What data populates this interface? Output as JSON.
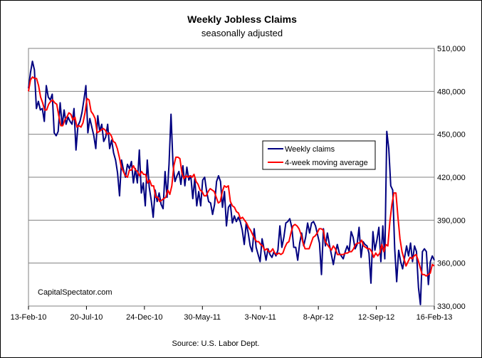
{
  "chart_data": {
    "type": "line",
    "title": "Weekly Jobless Claims",
    "subtitle": "seasonally adjusted",
    "source": "Source: U.S. Labor Dept.",
    "watermark": "CapitalSpectator.com",
    "ylim": [
      330000,
      510000
    ],
    "y_ticks": [
      330000,
      360000,
      390000,
      420000,
      450000,
      480000,
      510000
    ],
    "y_tick_labels": [
      "330,000",
      "360,000",
      "390,000",
      "420,000",
      "450,000",
      "480,000",
      "510,000"
    ],
    "x_tick_labels": [
      "13-Feb-10",
      "20-Jul-10",
      "24-Dec-10",
      "30-May-11",
      "3-Nov-11",
      "8-Apr-12",
      "12-Sep-12",
      "16-Feb-13"
    ],
    "grid": "horizontal",
    "legend_position": "center-right",
    "x_start": "13-Feb-10",
    "x_end": "16-Feb-13",
    "series": [
      {
        "name": "Weekly claims",
        "color": "#000080",
        "values": [
          482000,
          493000,
          501000,
          495000,
          468000,
          473000,
          467000,
          468000,
          459000,
          484000,
          476000,
          474000,
          478000,
          451000,
          449000,
          452000,
          472000,
          456000,
          467000,
          457000,
          462000,
          459000,
          457000,
          468000,
          439000,
          456000,
          459000,
          465000,
          474000,
          484000,
          451000,
          461000,
          455000,
          449000,
          440000,
          463000,
          452000,
          457000,
          445000,
          448000,
          457000,
          440000,
          446000,
          437000,
          432000,
          423000,
          407000,
          432000,
          425000,
          420000,
          429000,
          426000,
          431000,
          416000,
          426000,
          416000,
          439000,
          409000,
          416000,
          400000,
          432000,
          413000,
          404000,
          392000,
          411000,
          403000,
          409000,
          401000,
          398000,
          424000,
          406000,
          429000,
          464000,
          429000,
          417000,
          421000,
          424000,
          415000,
          428000,
          414000,
          427000,
          418000,
          421000,
          405000,
          419000,
          400000,
          410000,
          400000,
          418000,
          420000,
          410000,
          403000,
          402000,
          394000,
          401000,
          417000,
          421000,
          417000,
          399000,
          410000,
          386000,
          399000,
          401000,
          388000,
          393000,
          389000,
          392000,
          389000,
          383000,
          373000,
          388000,
          381000,
          372000,
          368000,
          384000,
          371000,
          366000,
          361000,
          377000,
          370000,
          362000,
          370000,
          366000,
          364000,
          368000,
          365000,
          369000,
          386000,
          371000,
          378000,
          388000,
          389000,
          391000,
          385000,
          371000,
          371000,
          362000,
          374000,
          381000,
          372000,
          378000,
          388000,
          381000,
          388000,
          389000,
          386000,
          380000,
          374000,
          352000,
          384000,
          372000,
          381000,
          373000,
          366000,
          359000,
          367000,
          373000,
          367000,
          365000,
          363000,
          368000,
          372000,
          368000,
          382000,
          378000,
          370000,
          373000,
          385000,
          364000,
          375000,
          373000,
          372000,
          367000,
          346000,
          382000,
          369000,
          376000,
          385000,
          361000,
          386000,
          363000,
          452000,
          440000,
          414000,
          411000,
          370000,
          347000,
          369000,
          361000,
          356000,
          364000,
          372000,
          365000,
          374000,
          361000,
          372000,
          368000,
          343000,
          331000,
          368000,
          370000,
          368000,
          345000,
          361000,
          365000,
          362000
        ]
      },
      {
        "name": "4-week moving average",
        "color": "#ff0000",
        "values": [
          480000,
          488000,
          490000,
          489000,
          489000,
          484000,
          476000,
          472000,
          467000,
          467000,
          471000,
          473000,
          474000,
          472000,
          471000,
          463000,
          456000,
          456000,
          460000,
          462000,
          465000,
          464000,
          460000,
          462000,
          455000,
          456000,
          455000,
          458000,
          465000,
          475000,
          474000,
          466000,
          464000,
          461000,
          451000,
          452000,
          453000,
          454000,
          453000,
          450000,
          451000,
          449000,
          445000,
          444000,
          440000,
          434000,
          427000,
          424000,
          421000,
          420000,
          425000,
          425000,
          428000,
          425000,
          424000,
          421000,
          424000,
          422000,
          422000,
          416000,
          418000,
          414000,
          414000,
          406000,
          406000,
          403000,
          404000,
          405000,
          406000,
          411000,
          408000,
          414000,
          428000,
          434000,
          434000,
          433000,
          423000,
          419000,
          421000,
          420000,
          421000,
          420000,
          422000,
          417000,
          415000,
          411000,
          410000,
          407000,
          407000,
          410000,
          412000,
          411000,
          410000,
          406000,
          402000,
          403000,
          410000,
          414000,
          413000,
          414000,
          403000,
          400000,
          399000,
          396000,
          395000,
          391000,
          392000,
          390000,
          388000,
          385000,
          383000,
          380000,
          377000,
          375000,
          375000,
          373000,
          372000,
          369000,
          370000,
          368000,
          368000,
          370000,
          367000,
          366000,
          367000,
          366000,
          367000,
          371000,
          374000,
          375000,
          381000,
          386000,
          387000,
          386000,
          384000,
          380000,
          374000,
          370000,
          370000,
          370000,
          374000,
          378000,
          379000,
          381000,
          384000,
          384000,
          383000,
          375000,
          373000,
          371000,
          369000,
          372000,
          370000,
          366000,
          366000,
          366000,
          366000,
          367000,
          367000,
          368000,
          368000,
          370000,
          373000,
          374000,
          374000,
          376000,
          372000,
          371000,
          370000,
          370000,
          368000,
          364000,
          367000,
          365000,
          367000,
          373000,
          368000,
          373000,
          372000,
          389000,
          401000,
          409000,
          409000,
          392000,
          377000,
          368000,
          363000,
          358000,
          361000,
          364000,
          363000,
          365000,
          366000,
          362000,
          357000,
          352000,
          352000,
          351000,
          352000,
          353000,
          359000,
          358000
        ]
      }
    ]
  }
}
